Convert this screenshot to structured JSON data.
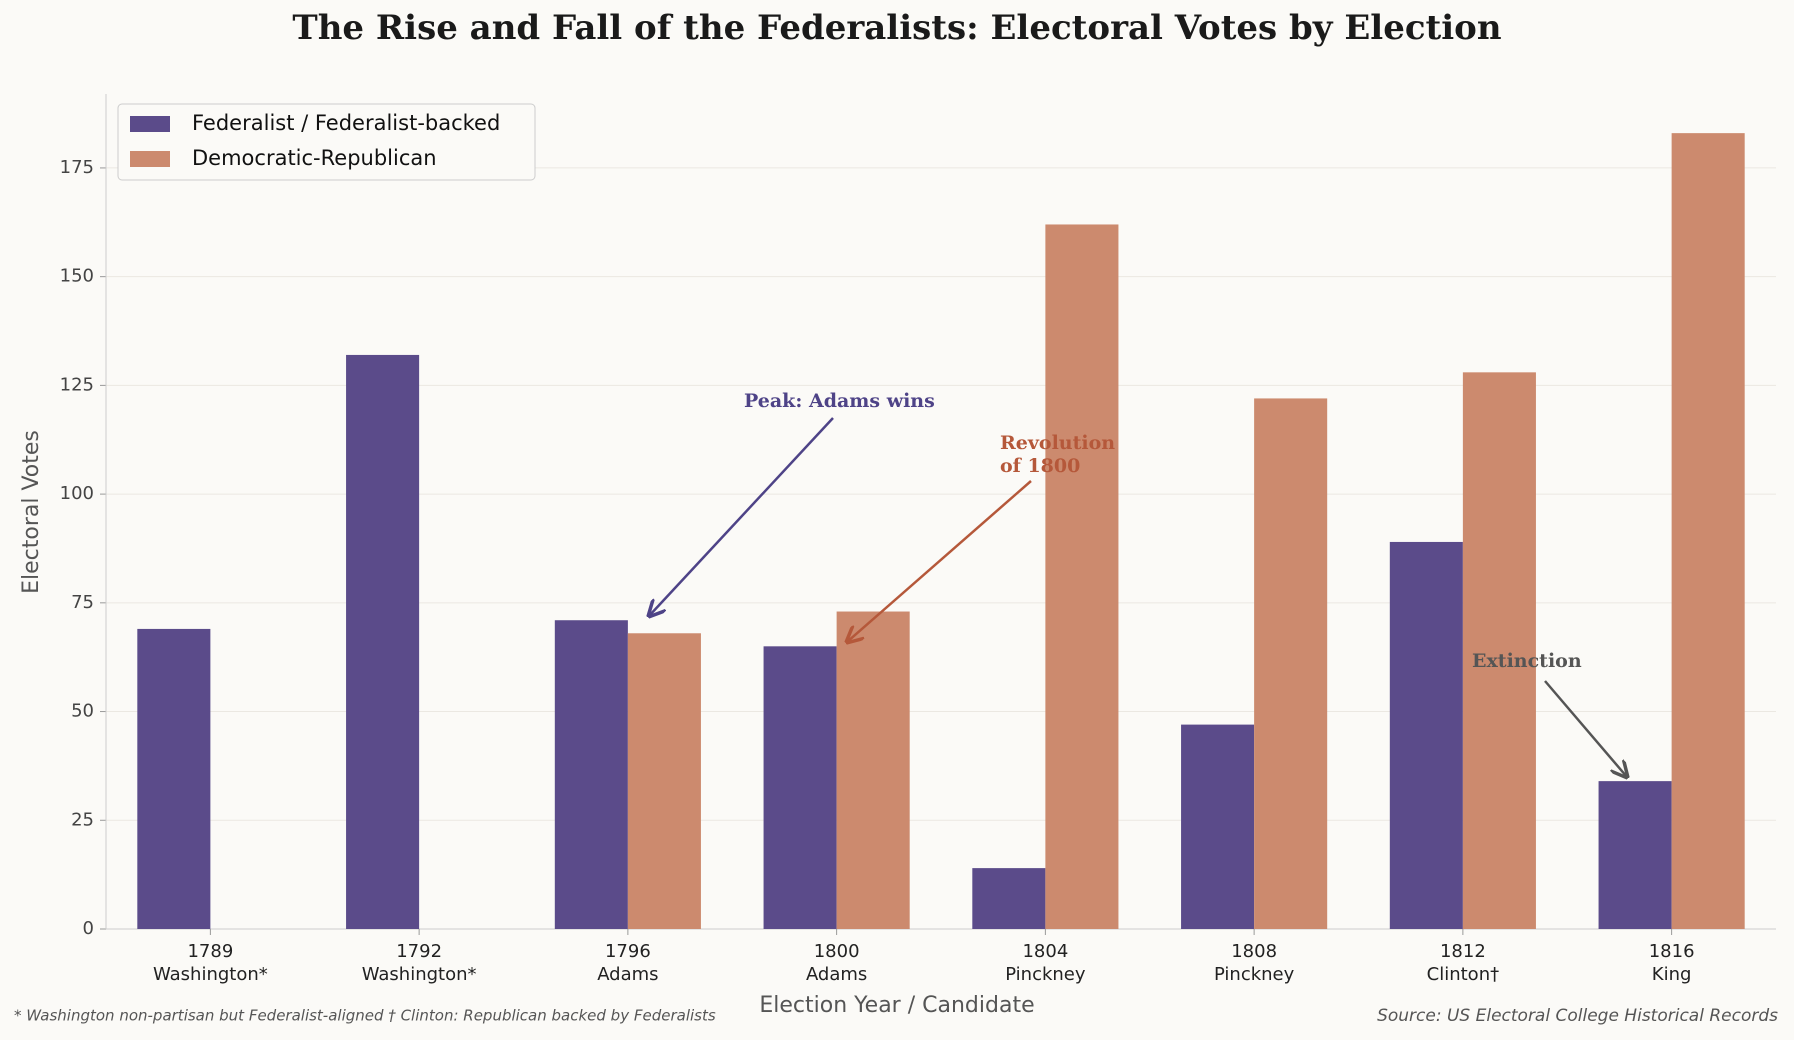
{
  "chart_data": {
    "type": "bar",
    "title": "The Rise and Fall of the Federalists: Electoral Votes by Election",
    "x_label": "Election Year / Candidate",
    "y_label": "Electoral Votes",
    "categories": [
      "1789",
      "1792",
      "1796",
      "1800",
      "1804",
      "1808",
      "1812",
      "1816"
    ],
    "candidates": [
      "Washington*",
      "Washington*",
      "Adams",
      "Adams",
      "Pinckney",
      "Pinckney",
      "Clinton†",
      "King"
    ],
    "series": [
      {
        "name": "Federalist / Federalist-backed",
        "color": "#5b4b8a",
        "values": [
          69,
          132,
          71,
          65,
          14,
          47,
          89,
          34
        ]
      },
      {
        "name": "Democratic-Republican",
        "color": "#cc8a6e",
        "values": [
          null,
          null,
          68,
          73,
          162,
          122,
          128,
          183
        ]
      }
    ],
    "ylim": [
      0,
      192
    ],
    "yticks": [
      0,
      25,
      50,
      75,
      100,
      125,
      150,
      175
    ],
    "grid": true,
    "legend": "upper left",
    "annotations": [
      "Peak: Adams wins",
      "Revolution",
      "of 1800",
      "Extinction"
    ],
    "footnote": "* Washington non-partisan but Federalist-aligned  † Clinton: Republican backed by Federalists",
    "source": "Source: US Electoral College Historical Records"
  }
}
